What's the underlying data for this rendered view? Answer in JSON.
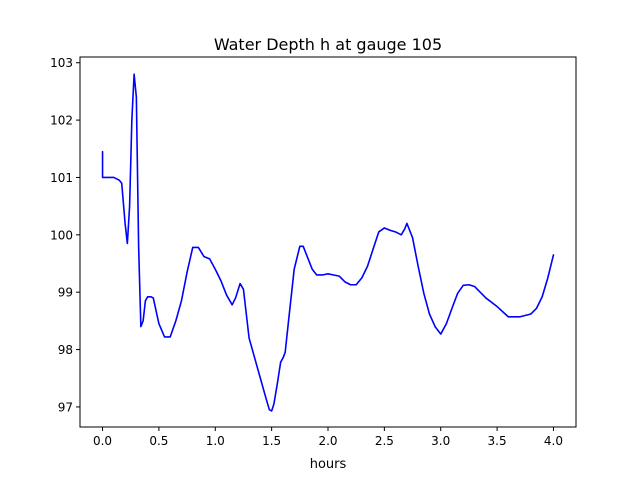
{
  "chart_data": {
    "type": "line",
    "title": "Water Depth h at gauge 105",
    "xlabel": "hours",
    "ylabel": "",
    "xlim": [
      -0.2,
      4.2
    ],
    "ylim": [
      96.65,
      103.1
    ],
    "x_ticks": [
      0.0,
      0.5,
      1.0,
      1.5,
      2.0,
      2.5,
      3.0,
      3.5,
      4.0
    ],
    "x_tick_labels": [
      "0.0",
      "0.5",
      "1.0",
      "1.5",
      "2.0",
      "2.5",
      "3.0",
      "3.5",
      "4.0"
    ],
    "y_ticks": [
      97,
      98,
      99,
      100,
      101,
      102,
      103
    ],
    "y_tick_labels": [
      "97",
      "98",
      "99",
      "100",
      "101",
      "102",
      "103"
    ],
    "grid": false,
    "series": [
      {
        "color": "#0000ff",
        "x": [
          0.0,
          0.0,
          0.02,
          0.05,
          0.1,
          0.15,
          0.17,
          0.2,
          0.22,
          0.24,
          0.26,
          0.28,
          0.3,
          0.32,
          0.34,
          0.36,
          0.38,
          0.4,
          0.43,
          0.45,
          0.5,
          0.55,
          0.6,
          0.65,
          0.7,
          0.75,
          0.8,
          0.85,
          0.9,
          0.95,
          1.0,
          1.05,
          1.1,
          1.15,
          1.18,
          1.22,
          1.25,
          1.3,
          1.35,
          1.4,
          1.45,
          1.48,
          1.5,
          1.52,
          1.55,
          1.58,
          1.6,
          1.62,
          1.65,
          1.7,
          1.75,
          1.78,
          1.82,
          1.86,
          1.9,
          1.95,
          2.0,
          2.05,
          2.1,
          2.15,
          2.2,
          2.25,
          2.3,
          2.35,
          2.4,
          2.45,
          2.5,
          2.55,
          2.6,
          2.65,
          2.68,
          2.7,
          2.75,
          2.8,
          2.85,
          2.9,
          2.95,
          3.0,
          3.05,
          3.1,
          3.15,
          3.2,
          3.25,
          3.3,
          3.35,
          3.4,
          3.5,
          3.6,
          3.7,
          3.8,
          3.85,
          3.9,
          3.95,
          4.0
        ],
        "y": [
          101.45,
          101.0,
          101.0,
          101.0,
          101.0,
          100.95,
          100.9,
          100.2,
          99.85,
          100.5,
          102.0,
          102.8,
          102.4,
          99.8,
          98.4,
          98.5,
          98.85,
          98.92,
          98.92,
          98.9,
          98.45,
          98.22,
          98.22,
          98.5,
          98.85,
          99.35,
          99.78,
          99.78,
          99.62,
          99.58,
          99.4,
          99.2,
          98.95,
          98.78,
          98.9,
          99.15,
          99.05,
          98.2,
          97.85,
          97.5,
          97.15,
          96.95,
          96.93,
          97.05,
          97.4,
          97.78,
          97.85,
          97.95,
          98.5,
          99.4,
          99.8,
          99.8,
          99.6,
          99.4,
          99.3,
          99.3,
          99.32,
          99.3,
          99.28,
          99.18,
          99.13,
          99.13,
          99.25,
          99.45,
          99.75,
          100.05,
          100.12,
          100.08,
          100.05,
          100.0,
          100.1,
          100.2,
          99.95,
          99.45,
          98.98,
          98.62,
          98.4,
          98.27,
          98.45,
          98.72,
          98.98,
          99.12,
          99.13,
          99.1,
          99.0,
          98.9,
          98.75,
          98.57,
          98.57,
          98.62,
          98.72,
          98.92,
          99.25,
          99.65
        ]
      }
    ]
  }
}
